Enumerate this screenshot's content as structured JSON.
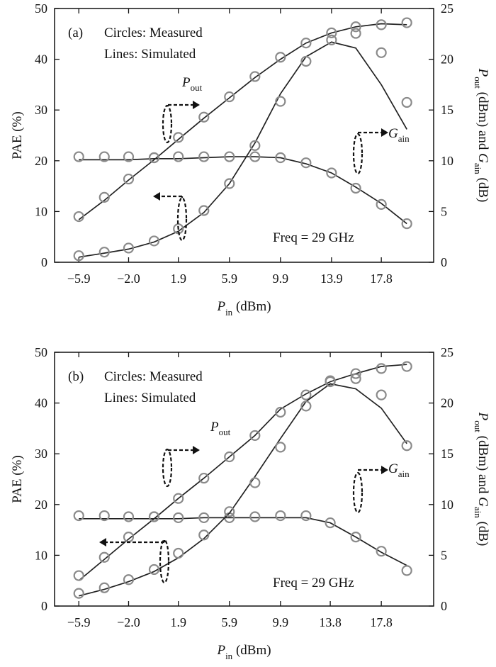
{
  "chart_data": [
    {
      "type": "line",
      "panel_label": "(a)",
      "annotations": {
        "line1": "Circles: Measured",
        "line2": "Lines: Simulated",
        "freq": "Freq = 29 GHz"
      },
      "xlabel": {
        "main": "P",
        "sub": "in",
        "unit": " (dBm)"
      },
      "ylabel_left": "PAE (%)",
      "ylabel_right": {
        "p1": "P",
        "s1": "out",
        "p2": " (dBm) and ",
        "p3": "G",
        "s2": "ain",
        "p4": " (dB)"
      },
      "xlim": [
        -7.8,
        21.9
      ],
      "ylim_left": [
        0,
        50
      ],
      "ylim_right": [
        0,
        25
      ],
      "x_ticks": [
        -5.9,
        -2.0,
        1.9,
        5.9,
        9.9,
        13.9,
        17.8
      ],
      "x_tick_labels": [
        "−5.9",
        "−2.0",
        "1.9",
        "5.9",
        "9.9",
        "13.9",
        "17.8"
      ],
      "y_ticks_left": [
        0,
        10,
        20,
        30,
        40,
        50
      ],
      "y_ticks_right": [
        0,
        5,
        10,
        15,
        20,
        25
      ],
      "x": [
        -5.9,
        -3.9,
        -2.0,
        0.0,
        1.9,
        3.9,
        5.9,
        7.9,
        9.9,
        11.9,
        13.9,
        15.8,
        17.8,
        19.8
      ],
      "series": [
        {
          "name": "Pout",
          "axis": "right",
          "label_main": "P",
          "label_sub": "out",
          "measured": [
            4.5,
            6.4,
            8.2,
            10.3,
            12.3,
            14.3,
            16.3,
            18.3,
            20.2,
            21.6,
            22.6,
            23.2,
            23.4,
            23.6
          ],
          "simulated": [
            4.2,
            6.1,
            8.1,
            10.1,
            12.1,
            14.2,
            16.2,
            18.2,
            20.0,
            21.6,
            22.6,
            23.2,
            23.5,
            23.4
          ]
        },
        {
          "name": "Gain",
          "axis": "right",
          "label_main": "G",
          "label_sub": "ain",
          "measured": [
            10.4,
            10.4,
            10.4,
            10.3,
            10.4,
            10.4,
            10.4,
            10.4,
            10.3,
            9.8,
            8.8,
            7.3,
            5.7,
            3.8
          ],
          "simulated": [
            10.1,
            10.1,
            10.1,
            10.2,
            10.2,
            10.3,
            10.4,
            10.4,
            10.3,
            9.7,
            8.8,
            7.4,
            5.8,
            3.8
          ]
        },
        {
          "name": "PAE",
          "axis": "left",
          "measured": [
            1.3,
            2.0,
            2.8,
            4.2,
            6.6,
            10.2,
            15.5,
            23.0,
            31.7,
            39.6,
            43.8,
            45.1,
            41.3,
            31.5
          ],
          "simulated": [
            1.0,
            1.8,
            2.6,
            4.0,
            6.1,
            9.8,
            15.5,
            23.5,
            33.2,
            40.5,
            43.4,
            42.2,
            35.0,
            26.2
          ]
        }
      ]
    },
    {
      "type": "line",
      "panel_label": "(b)",
      "annotations": {
        "line1": "Circles: Measured",
        "line2": "Lines: Simulated",
        "freq": "Freq = 29 GHz"
      },
      "xlabel": {
        "main": "P",
        "sub": "in",
        "unit": " (dBm)"
      },
      "ylabel_left": "PAE (%)",
      "ylabel_right": {
        "p1": "P",
        "s1": "out",
        "p2": " (dBm) and ",
        "p3": "G",
        "s2": "ain",
        "p4": " (dB)"
      },
      "xlim": [
        -7.8,
        21.9
      ],
      "ylim_left": [
        0,
        50
      ],
      "ylim_right": [
        0,
        25
      ],
      "x_ticks": [
        -5.9,
        -2.0,
        1.9,
        5.9,
        9.9,
        13.8,
        17.8
      ],
      "x_tick_labels": [
        "−5.9",
        "−2.0",
        "1.9",
        "5.9",
        "9.9",
        "13.8",
        "17.8"
      ],
      "y_ticks_left": [
        0,
        10,
        20,
        30,
        40,
        50
      ],
      "y_ticks_right": [
        0,
        5,
        10,
        15,
        20,
        25
      ],
      "x": [
        -5.9,
        -3.9,
        -2.0,
        0.0,
        1.9,
        3.9,
        5.9,
        7.9,
        9.9,
        11.9,
        13.8,
        15.8,
        17.8,
        19.8
      ],
      "series": [
        {
          "name": "Pout",
          "axis": "right",
          "label_main": "P",
          "label_sub": "out",
          "measured": [
            3.0,
            4.8,
            6.8,
            8.8,
            10.6,
            12.6,
            14.7,
            16.8,
            19.1,
            20.8,
            22.2,
            22.9,
            23.4,
            23.6
          ],
          "simulated": [
            2.5,
            4.6,
            6.6,
            8.6,
            10.6,
            12.6,
            14.7,
            16.8,
            19.4,
            20.9,
            22.1,
            22.9,
            23.6,
            23.8
          ]
        },
        {
          "name": "Gain",
          "axis": "right",
          "label_main": "G",
          "label_sub": "ain",
          "measured": [
            8.9,
            8.9,
            8.8,
            8.8,
            8.7,
            8.7,
            8.7,
            8.8,
            8.9,
            8.9,
            8.2,
            6.8,
            5.4,
            3.5
          ],
          "simulated": [
            8.6,
            8.6,
            8.6,
            8.6,
            8.6,
            8.7,
            8.7,
            8.7,
            8.7,
            8.7,
            8.2,
            6.8,
            5.3,
            4.0
          ]
        },
        {
          "name": "PAE",
          "axis": "left",
          "measured": [
            2.5,
            3.6,
            5.2,
            7.2,
            10.4,
            14.0,
            18.6,
            24.3,
            31.3,
            39.4,
            44.2,
            44.8,
            41.6,
            31.6
          ],
          "simulated": [
            2.0,
            3.3,
            4.8,
            6.8,
            9.5,
            13.3,
            18.3,
            25.5,
            33.0,
            40.3,
            43.8,
            42.8,
            39.0,
            32.0
          ]
        }
      ]
    }
  ]
}
